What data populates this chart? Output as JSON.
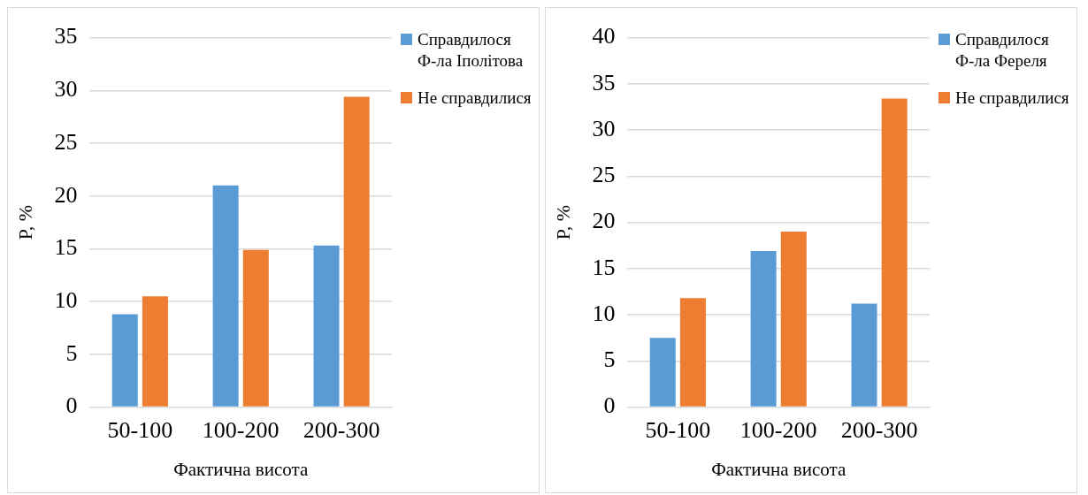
{
  "chart_data": [
    {
      "type": "bar",
      "xlabel": "Фактична висота",
      "ylabel": "P, %",
      "categories": [
        "50-100",
        "100-200",
        "200-300"
      ],
      "ylim": [
        0,
        35
      ],
      "yticks": [
        0,
        5,
        10,
        15,
        20,
        25,
        30,
        35
      ],
      "grid": "y",
      "legend": "right",
      "series": [
        {
          "name": "Справдилося Ф-ла Іполітова",
          "color": "#5b9bd5",
          "values": [
            8.8,
            21,
            15.3
          ]
        },
        {
          "name": "Не справдилися",
          "color": "#ed7d31",
          "values": [
            10.5,
            14.9,
            29.4
          ]
        }
      ]
    },
    {
      "type": "bar",
      "xlabel": "Фактична висота",
      "ylabel": "P, %",
      "categories": [
        "50-100",
        "100-200",
        "200-300"
      ],
      "ylim": [
        0,
        40
      ],
      "yticks": [
        0,
        5,
        10,
        15,
        20,
        25,
        30,
        35,
        40
      ],
      "grid": "y",
      "legend": "right",
      "series": [
        {
          "name": "Справдилося Ф-ла Фереля",
          "color": "#5b9bd5",
          "values": [
            7.5,
            16.9,
            11.2
          ]
        },
        {
          "name": "Не справдилися",
          "color": "#ed7d31",
          "values": [
            11.8,
            19.0,
            33.4
          ]
        }
      ]
    }
  ]
}
